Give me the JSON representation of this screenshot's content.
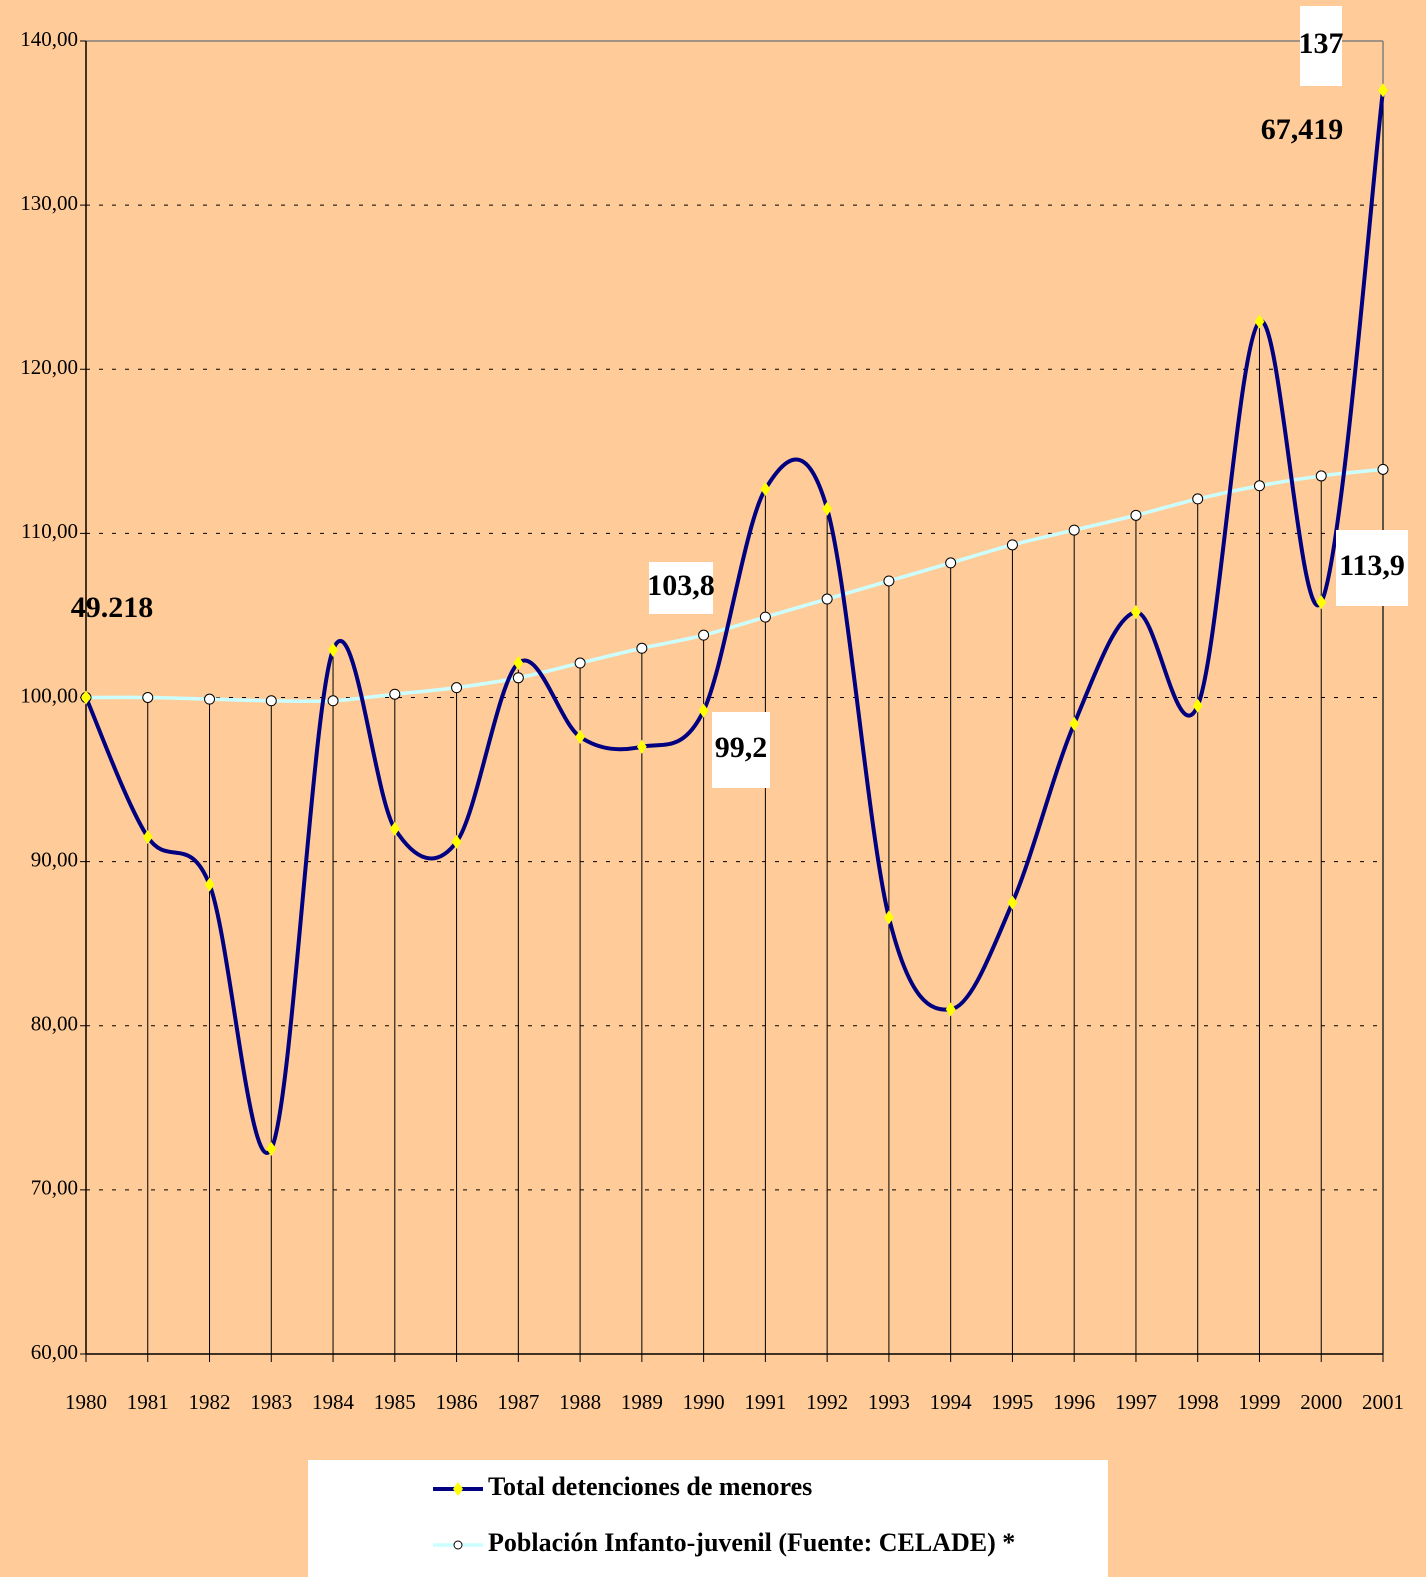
{
  "chart_data": {
    "type": "line",
    "categories": [
      "1980",
      "1981",
      "1982",
      "1983",
      "1984",
      "1985",
      "1986",
      "1987",
      "1988",
      "1989",
      "1990",
      "1991",
      "1992",
      "1993",
      "1994",
      "1995",
      "1996",
      "1997",
      "1998",
      "1999",
      "2000",
      "2001"
    ],
    "series": [
      {
        "name": "Total detenciones de menores",
        "color": "#000080",
        "marker_color": "#FFFF00",
        "values": [
          100,
          91.5,
          88.6,
          72.5,
          102.9,
          92.0,
          91.2,
          102.1,
          97.6,
          97.0,
          99.2,
          112.7,
          111.5,
          86.6,
          81.0,
          87.5,
          98.4,
          105.2,
          99.5,
          122.9,
          105.8,
          137
        ]
      },
      {
        "name": "Población Infanto-juvenil (Fuente: CELADE) *",
        "color": "#CCFFFF",
        "marker_color": "#FFFFFF",
        "values": [
          100.0,
          100.0,
          99.9,
          99.8,
          99.8,
          100.2,
          100.6,
          101.2,
          102.1,
          103.0,
          103.8,
          104.9,
          106.0,
          107.1,
          108.2,
          109.3,
          110.2,
          111.1,
          112.1,
          112.9,
          113.5,
          113.9
        ]
      }
    ],
    "ylim": [
      60,
      140
    ],
    "yticks": [
      {
        "value": 60,
        "label": "60,00"
      },
      {
        "value": 70,
        "label": "70,00"
      },
      {
        "value": 80,
        "label": "80,00"
      },
      {
        "value": 90,
        "label": "90,00"
      },
      {
        "value": 100,
        "label": "100,00"
      },
      {
        "value": 110,
        "label": "110,00"
      },
      {
        "value": 120,
        "label": "120,00"
      },
      {
        "value": 130,
        "label": "130,00"
      },
      {
        "value": 140,
        "label": "140,00"
      }
    ],
    "grid": true,
    "annotations": [
      "49.218",
      "103,8",
      "99,2",
      "137",
      "67,419",
      "113,9"
    ]
  }
}
